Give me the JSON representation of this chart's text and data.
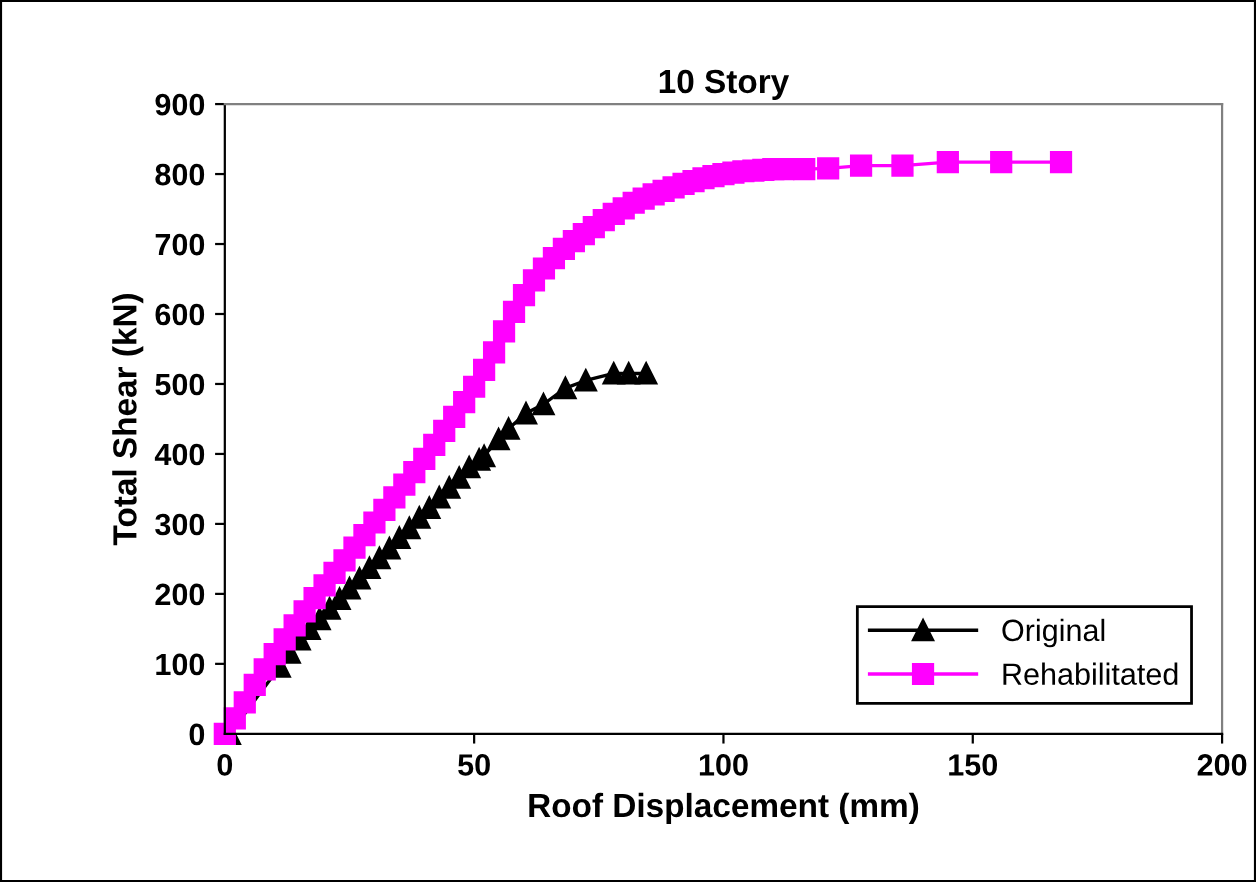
{
  "chart_data": {
    "type": "line",
    "title": "10 Story",
    "xlabel": "Roof Displacement (mm)",
    "ylabel": "Total Shear (kN)",
    "xlim": [
      0,
      200
    ],
    "xticks": [
      0,
      50,
      100,
      150,
      200
    ],
    "ylim": [
      0,
      900
    ],
    "yticks": [
      0,
      100,
      200,
      300,
      400,
      500,
      600,
      700,
      800,
      900
    ],
    "grid": false,
    "legend": "bottom right",
    "series": [
      {
        "name": "Original",
        "color": "#000000",
        "marker": "triangle",
        "x": [
          1,
          11,
          13,
          15,
          17,
          19,
          21,
          23,
          25,
          27,
          29,
          31,
          33,
          35,
          37,
          39,
          41,
          43,
          45,
          47,
          49,
          51,
          52,
          54.9,
          56.9,
          60.4,
          63.9,
          68.3,
          72.4,
          78,
          81,
          84.5
        ],
        "values": [
          0,
          96,
          116,
          135,
          150,
          164,
          179,
          193,
          208,
          222,
          237,
          251,
          265,
          280,
          294,
          309,
          323,
          338,
          352,
          366,
          381,
          392,
          397,
          421,
          436,
          458,
          471,
          494,
          505,
          515,
          515,
          515
        ]
      },
      {
        "name": "Rehabilitated",
        "color": "#ff00ff",
        "marker": "square",
        "x": [
          0,
          2,
          4,
          6,
          8,
          10,
          12,
          14,
          16,
          18,
          20,
          22,
          24,
          26,
          28,
          30,
          32,
          34,
          36,
          38,
          40,
          42,
          44,
          46,
          48,
          50,
          52,
          54,
          56,
          58,
          60,
          62,
          64,
          66,
          68,
          70,
          72,
          74,
          76,
          78,
          80,
          82,
          84,
          86,
          88,
          90,
          92,
          94,
          96,
          98,
          100,
          102,
          104,
          106,
          108,
          110,
          112,
          116.2,
          121,
          127.6,
          135.9,
          145,
          155.7,
          167.7
        ],
        "values": [
          0,
          22,
          45,
          70,
          92,
          114,
          135,
          155,
          175,
          194,
          212,
          230,
          248,
          266,
          284,
          302,
          320,
          338,
          356,
          374,
          393,
          413,
          433,
          453,
          474,
          496,
          520,
          545,
          575,
          603,
          627,
          648,
          665,
          680,
          693,
          704,
          714,
          724,
          734,
          743,
          751,
          759,
          765,
          771,
          776,
          781,
          786,
          790,
          794,
          797,
          800,
          802,
          804,
          805,
          806,
          807,
          807,
          807,
          808,
          812,
          812,
          817,
          817,
          817
        ]
      }
    ]
  }
}
